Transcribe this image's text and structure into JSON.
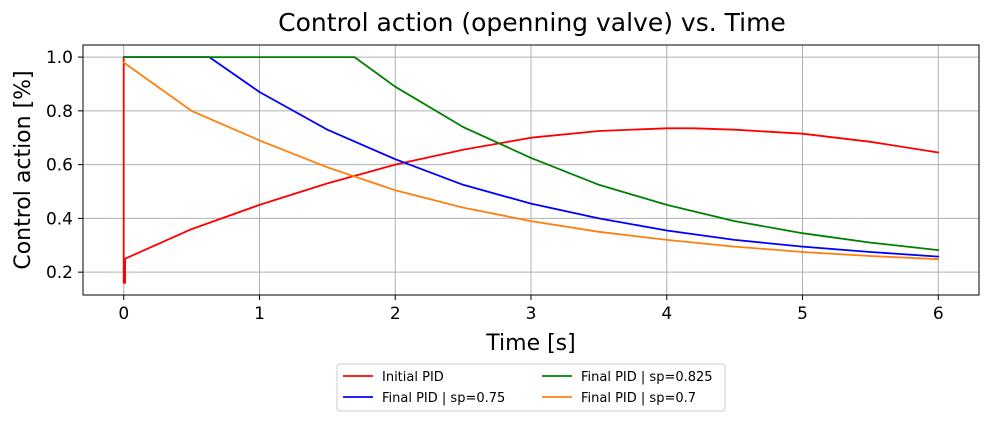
{
  "chart_data": {
    "type": "line",
    "title": "Control action (openning valve) vs. Time",
    "xlabel": "Time [s]",
    "ylabel": "Control action [%]",
    "xlim": [
      -0.3,
      6.3
    ],
    "ylim": [
      0.115,
      1.045
    ],
    "xticks": [
      0,
      1,
      2,
      3,
      4,
      5,
      6
    ],
    "xtick_labels": [
      "0",
      "1",
      "2",
      "3",
      "4",
      "5",
      "6"
    ],
    "yticks": [
      0.2,
      0.4,
      0.6,
      0.8,
      1.0
    ],
    "ytick_labels": [
      "0.2",
      "0.4",
      "0.6",
      "0.8",
      "1.0"
    ],
    "grid": true,
    "legend_position": "below",
    "series": [
      {
        "name": "Initial PID",
        "color": "#ff0000",
        "x": [
          0,
          0,
          0.01,
          0.01,
          0.5,
          1,
          1.5,
          2,
          2.5,
          3,
          3.5,
          4,
          4.2,
          4.5,
          5,
          5.5,
          6
        ],
        "y": [
          1.0,
          0.16,
          0.16,
          0.25,
          0.36,
          0.45,
          0.53,
          0.6,
          0.655,
          0.7,
          0.725,
          0.735,
          0.735,
          0.73,
          0.715,
          0.685,
          0.645
        ]
      },
      {
        "name": "Final PID | sp=0.75",
        "color": "#0000ff",
        "x": [
          0,
          0.63,
          1,
          1.5,
          2,
          2.5,
          3,
          3.5,
          4,
          4.5,
          5,
          5.5,
          6
        ],
        "y": [
          1.0,
          1.0,
          0.87,
          0.73,
          0.62,
          0.525,
          0.455,
          0.4,
          0.355,
          0.32,
          0.295,
          0.275,
          0.258
        ]
      },
      {
        "name": "Final PID | sp=0.825",
        "color": "#008000",
        "x": [
          0,
          1.7,
          2,
          2.5,
          3,
          3.5,
          4,
          4.5,
          5,
          5.5,
          6
        ],
        "y": [
          1.0,
          1.0,
          0.89,
          0.74,
          0.625,
          0.525,
          0.45,
          0.39,
          0.345,
          0.31,
          0.282
        ]
      },
      {
        "name": "Final PID | sp=0.7",
        "color": "#ff7f0e",
        "x": [
          0,
          0.5,
          1,
          1.5,
          2,
          2.5,
          3,
          3.5,
          4,
          4.5,
          5,
          5.5,
          6
        ],
        "y": [
          0.98,
          0.8,
          0.69,
          0.59,
          0.505,
          0.44,
          0.39,
          0.35,
          0.32,
          0.295,
          0.275,
          0.26,
          0.248
        ]
      }
    ]
  }
}
